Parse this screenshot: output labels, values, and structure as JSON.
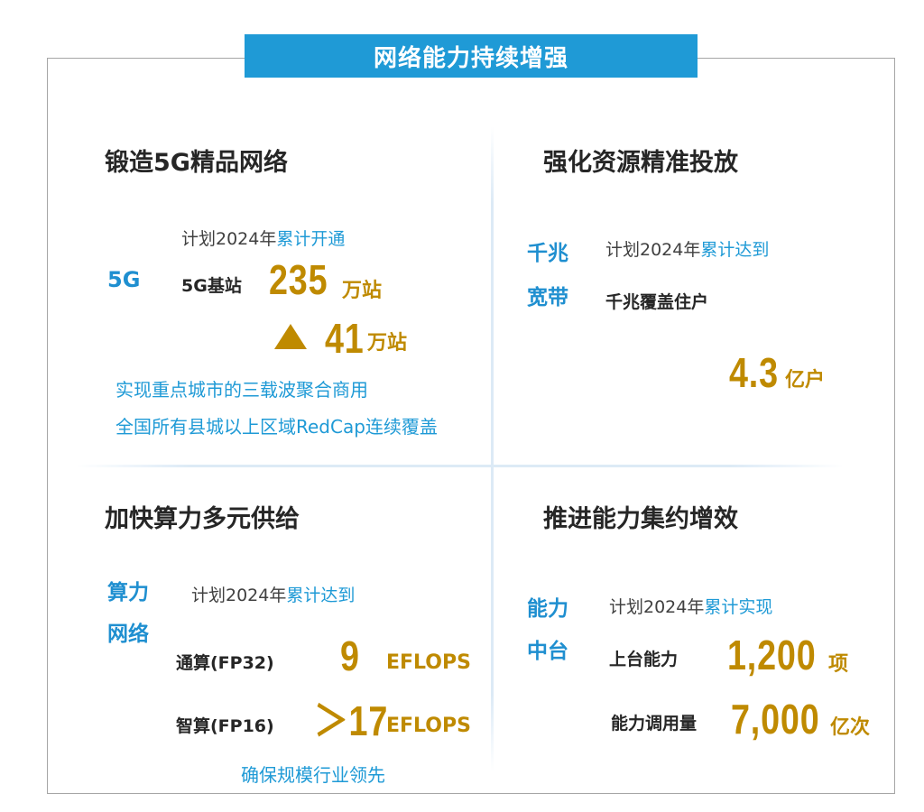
{
  "banner": "网络能力持续增强",
  "q1": {
    "title": "锻造5G精品网络",
    "tag": "5G",
    "plan_prefix": "计划2024年",
    "plan_highlight": "累计开通",
    "label": "5G基站",
    "value": "235",
    "unit": "万站",
    "increase_value": "41",
    "increase_unit": "万站",
    "note1": "实现重点城市的三载波聚合商用",
    "note2": "全国所有县城以上区域RedCap连续覆盖"
  },
  "q2": {
    "title": "强化资源精准投放",
    "tag_line1": "千兆",
    "tag_line2": "宽带",
    "plan_prefix": "计划2024年",
    "plan_highlight": "累计达到",
    "label": "千兆覆盖住户",
    "value": "4.3",
    "unit": "亿户"
  },
  "q3": {
    "title": "加快算力多元供给",
    "tag_line1": "算力",
    "tag_line2": "网络",
    "plan_prefix": "计划2024年",
    "plan_highlight": "累计达到",
    "row1_label": "通算(FP32)",
    "row1_value": "9",
    "row1_unit": "EFLOPS",
    "row2_label": "智算(FP16)",
    "row2_value": "＞17",
    "row2_unit": "EFLOPS",
    "note": "确保规模行业领先"
  },
  "q4": {
    "title": "推进能力集约增效",
    "tag_line1": "能力",
    "tag_line2": "中台",
    "plan_prefix": "计划2024年",
    "plan_highlight": "累计实现",
    "row1_label": "上台能力",
    "row1_value": "1,200",
    "row1_unit": "项",
    "row2_label": "能力调用量",
    "row2_value": "7,000",
    "row2_unit": "亿次"
  },
  "colors": {
    "accent_blue": "#1f9ad6",
    "gold": "#bf8a00",
    "border": "#a6a6a6"
  },
  "icons": {
    "increase": "up-triangle-icon"
  }
}
